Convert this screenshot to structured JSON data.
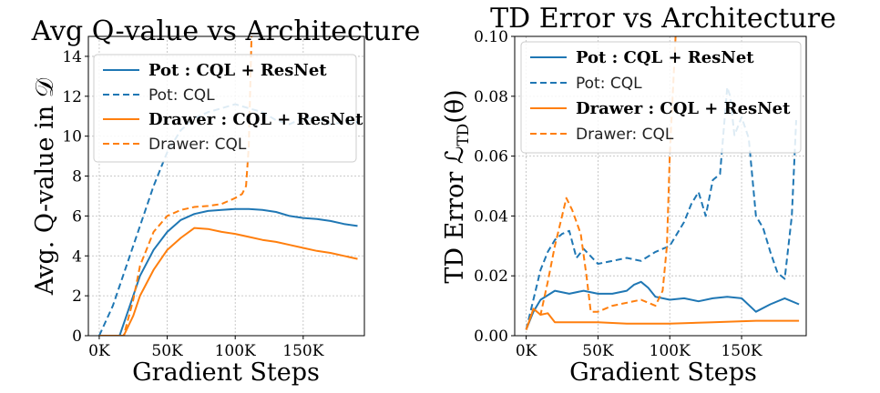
{
  "chart_data": [
    {
      "type": "line",
      "title": "Avg Q-value vs Architecture",
      "xlabel": "Gradient Steps",
      "ylabel": "Avg.  Q-value in 𝒟",
      "xlim": [
        -8000,
        195000
      ],
      "ylim": [
        0,
        15
      ],
      "xticks": [
        0,
        50000,
        100000,
        150000
      ],
      "xtick_labels": [
        "0K",
        "50K",
        "100K",
        "150K"
      ],
      "yticks": [
        0,
        2,
        4,
        6,
        8,
        10,
        12,
        14
      ],
      "ytick_labels": [
        "0",
        "2",
        "4",
        "6",
        "8",
        "10",
        "12",
        "14"
      ],
      "grid": true,
      "legend_position": "top",
      "series": [
        {
          "name": "Pot : CQL + ResNet",
          "name_bold": "Pot",
          "name_rest": " : CQL + ResNet",
          "color": "#1f77b4",
          "dash": "solid",
          "x": [
            0,
            15000,
            20000,
            25000,
            30000,
            40000,
            50000,
            60000,
            70000,
            80000,
            90000,
            100000,
            110000,
            120000,
            130000,
            140000,
            150000,
            160000,
            170000,
            180000,
            190000
          ],
          "y": [
            0,
            0,
            1.0,
            2.0,
            3.0,
            4.3,
            5.2,
            5.8,
            6.1,
            6.25,
            6.3,
            6.35,
            6.35,
            6.3,
            6.2,
            6.0,
            5.9,
            5.85,
            5.75,
            5.6,
            5.5
          ]
        },
        {
          "name": "Pot: CQL",
          "color": "#1f77b4",
          "dash": "dashed",
          "x": [
            0,
            10000,
            20000,
            30000,
            40000,
            50000,
            60000,
            70000,
            80000,
            90000,
            100000,
            110000,
            120000,
            130000,
            140000,
            150000,
            160000,
            170000,
            180000,
            190000
          ],
          "y": [
            0,
            1.5,
            3.5,
            5.5,
            7.5,
            9.2,
            10.3,
            10.9,
            11.2,
            11.4,
            11.6,
            11.4,
            11.2,
            10.8,
            10.6,
            10.9,
            10.9,
            10.6,
            10.7,
            10.7
          ]
        },
        {
          "name": "Drawer : CQL + ResNet",
          "name_bold": "Drawer",
          "name_rest": " : CQL + ResNet",
          "color": "#ff7f0e",
          "dash": "solid",
          "x": [
            0,
            18000,
            25000,
            30000,
            40000,
            50000,
            60000,
            70000,
            80000,
            90000,
            100000,
            110000,
            120000,
            130000,
            140000,
            150000,
            160000,
            170000,
            180000,
            190000
          ],
          "y": [
            0,
            0,
            1.0,
            2.0,
            3.3,
            4.3,
            4.9,
            5.4,
            5.35,
            5.2,
            5.1,
            4.95,
            4.8,
            4.7,
            4.55,
            4.4,
            4.25,
            4.15,
            4.0,
            3.85
          ]
        },
        {
          "name": "Drawer: CQL",
          "color": "#ff7f0e",
          "dash": "dashed",
          "x": [
            0,
            18000,
            25000,
            30000,
            40000,
            50000,
            60000,
            70000,
            80000,
            90000,
            100000,
            105000,
            108000,
            110000,
            112000
          ],
          "y": [
            0,
            0,
            1.8,
            3.5,
            5.2,
            6.0,
            6.3,
            6.45,
            6.5,
            6.6,
            6.9,
            7.1,
            7.5,
            9.5,
            15
          ]
        }
      ]
    },
    {
      "type": "line",
      "title": "TD Error vs Architecture",
      "xlabel": "Gradient Steps",
      "ylabel": "TD Error ℒTD(θ)",
      "ylabel_main": "TD Error ℒ",
      "ylabel_sub": "TD",
      "ylabel_tail": "(θ)",
      "xlim": [
        -8000,
        195000
      ],
      "ylim": [
        0,
        0.1
      ],
      "xticks": [
        0,
        50000,
        100000,
        150000
      ],
      "xtick_labels": [
        "0K",
        "50K",
        "100K",
        "150K"
      ],
      "yticks": [
        0,
        0.02,
        0.04,
        0.06,
        0.08,
        0.1
      ],
      "ytick_labels": [
        "0.00",
        "0.02",
        "0.04",
        "0.06",
        "0.08",
        "0.10"
      ],
      "grid": true,
      "legend_position": "top",
      "series": [
        {
          "name": "Pot : CQL + ResNet",
          "name_bold": "Pot",
          "name_rest": " : CQL + ResNet",
          "color": "#1f77b4",
          "dash": "solid",
          "x": [
            0,
            5000,
            10000,
            20000,
            30000,
            40000,
            50000,
            60000,
            70000,
            75000,
            80000,
            85000,
            90000,
            100000,
            110000,
            120000,
            130000,
            140000,
            150000,
            160000,
            170000,
            180000,
            190000
          ],
          "y": [
            0.002,
            0.008,
            0.012,
            0.015,
            0.014,
            0.015,
            0.014,
            0.014,
            0.015,
            0.017,
            0.018,
            0.016,
            0.013,
            0.012,
            0.0125,
            0.0115,
            0.0125,
            0.013,
            0.0125,
            0.008,
            0.0105,
            0.0125,
            0.0105
          ]
        },
        {
          "name": "Pot: CQL",
          "color": "#1f77b4",
          "dash": "dashed",
          "x": [
            0,
            5000,
            10000,
            15000,
            20000,
            25000,
            30000,
            35000,
            40000,
            50000,
            60000,
            70000,
            80000,
            90000,
            100000,
            110000,
            115000,
            120000,
            125000,
            130000,
            135000,
            140000,
            142000,
            145000,
            150000,
            155000,
            160000,
            165000,
            170000,
            175000,
            180000,
            185000,
            188000
          ],
          "y": [
            0.002,
            0.012,
            0.022,
            0.028,
            0.032,
            0.034,
            0.035,
            0.026,
            0.029,
            0.024,
            0.025,
            0.026,
            0.025,
            0.028,
            0.03,
            0.038,
            0.044,
            0.048,
            0.04,
            0.052,
            0.054,
            0.083,
            0.08,
            0.067,
            0.073,
            0.066,
            0.04,
            0.036,
            0.028,
            0.021,
            0.019,
            0.04,
            0.072
          ]
        },
        {
          "name": "Drawer : CQL + ResNet",
          "name_bold": "Drawer",
          "name_rest": " : CQL + ResNet",
          "color": "#ff7f0e",
          "dash": "solid",
          "x": [
            0,
            3000,
            5000,
            10000,
            15000,
            20000,
            30000,
            50000,
            70000,
            100000,
            130000,
            160000,
            190000
          ],
          "y": [
            0.002,
            0.006,
            0.009,
            0.007,
            0.0075,
            0.0045,
            0.0045,
            0.0045,
            0.004,
            0.004,
            0.0045,
            0.005,
            0.005
          ]
        },
        {
          "name": "Drawer: CQL",
          "color": "#ff7f0e",
          "dash": "dashed",
          "x": [
            0,
            5000,
            10000,
            15000,
            20000,
            25000,
            28000,
            32000,
            38000,
            42000,
            45000,
            50000,
            60000,
            70000,
            80000,
            90000,
            95000,
            98000,
            100000,
            104000
          ],
          "y": [
            0.002,
            0.009,
            0.007,
            0.018,
            0.03,
            0.04,
            0.046,
            0.042,
            0.034,
            0.02,
            0.008,
            0.008,
            0.01,
            0.011,
            0.012,
            0.01,
            0.015,
            0.03,
            0.06,
            0.1
          ]
        }
      ]
    }
  ]
}
